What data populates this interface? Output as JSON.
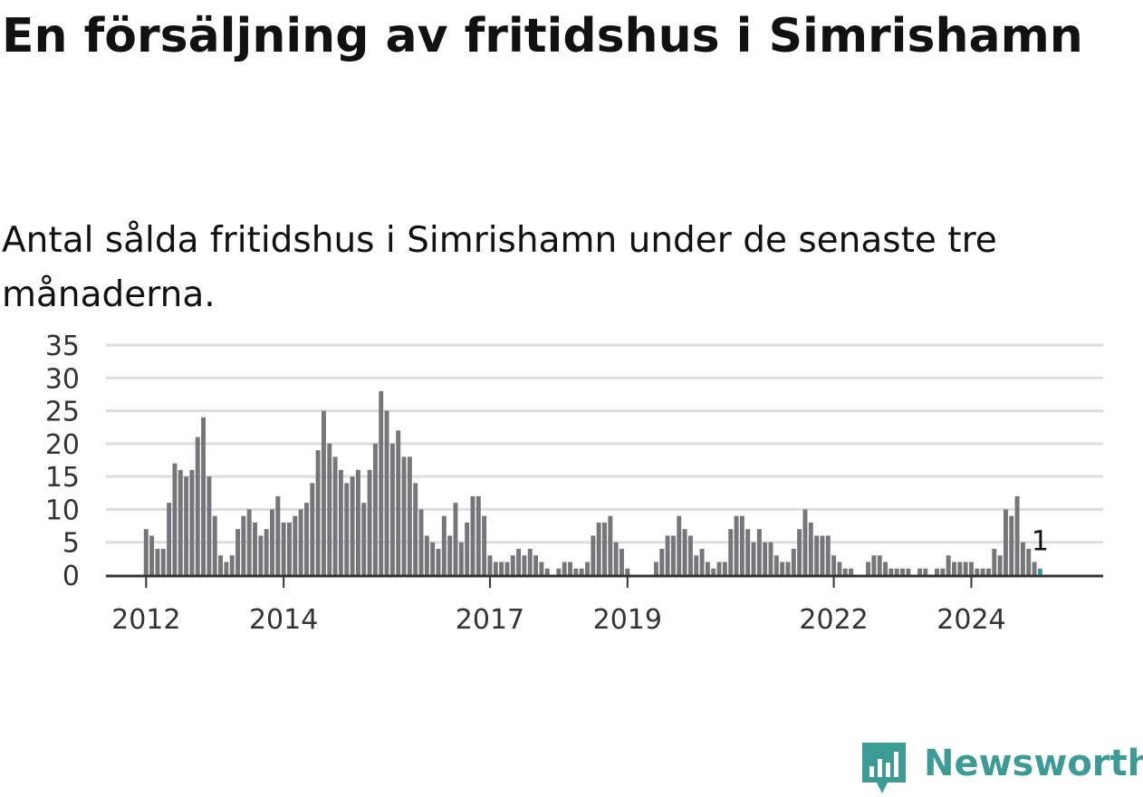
{
  "title": "En försäljning av fritidshus i Simrishamn",
  "subtitle": "Antal sålda fritidshus i Simrishamn under de senaste tre månaderna.",
  "brand": {
    "name": "Newsworthy",
    "color": "#3d9b96",
    "icon": "newsworthy-logo-icon"
  },
  "colors": {
    "bar": "#76757a",
    "highlight": "#3d9b96",
    "grid": "#dddddd",
    "axis": "#333333"
  },
  "chart_data": {
    "type": "bar",
    "ylim": [
      0,
      35
    ],
    "yticks": [
      0,
      5,
      10,
      15,
      20,
      25,
      30,
      35
    ],
    "grid": true,
    "x_range": [
      "2011-06",
      "2025-12"
    ],
    "x_ticks": [
      {
        "label": "2012",
        "month": "2012-01"
      },
      {
        "label": "2014",
        "month": "2014-01"
      },
      {
        "label": "2017",
        "month": "2017-01"
      },
      {
        "label": "2019",
        "month": "2019-01"
      },
      {
        "label": "2022",
        "month": "2022-01"
      },
      {
        "label": "2024",
        "month": "2024-01"
      }
    ],
    "start_month": "2012-01",
    "values": [
      7,
      6,
      4,
      4,
      11,
      17,
      16,
      15,
      16,
      21,
      24,
      15,
      9,
      3,
      2,
      3,
      7,
      9,
      10,
      8,
      6,
      7,
      10,
      12,
      8,
      8,
      9,
      10,
      11,
      14,
      19,
      25,
      20,
      18,
      16,
      14,
      15,
      16,
      11,
      16,
      20,
      28,
      25,
      20,
      22,
      18,
      18,
      14,
      10,
      6,
      5,
      4,
      9,
      6,
      11,
      5,
      8,
      12,
      12,
      9,
      3,
      2,
      2,
      2,
      3,
      4,
      3,
      4,
      3,
      2,
      1,
      0,
      1,
      2,
      2,
      1,
      1,
      2,
      6,
      8,
      8,
      9,
      5,
      4,
      1,
      0,
      0,
      0,
      0,
      2,
      4,
      6,
      6,
      9,
      7,
      6,
      3,
      4,
      2,
      1,
      2,
      2,
      7,
      9,
      9,
      7,
      5,
      7,
      5,
      5,
      3,
      2,
      2,
      4,
      7,
      10,
      8,
      6,
      6,
      6,
      3,
      2,
      1,
      1,
      0,
      0,
      2,
      3,
      3,
      2,
      1,
      1,
      1,
      1,
      0,
      1,
      1,
      0,
      1,
      1,
      3,
      2,
      2,
      2,
      2,
      1,
      1,
      1,
      4,
      3,
      10,
      9,
      12,
      5,
      4,
      2,
      1
    ],
    "highlight_last": true,
    "annotation": "1"
  }
}
